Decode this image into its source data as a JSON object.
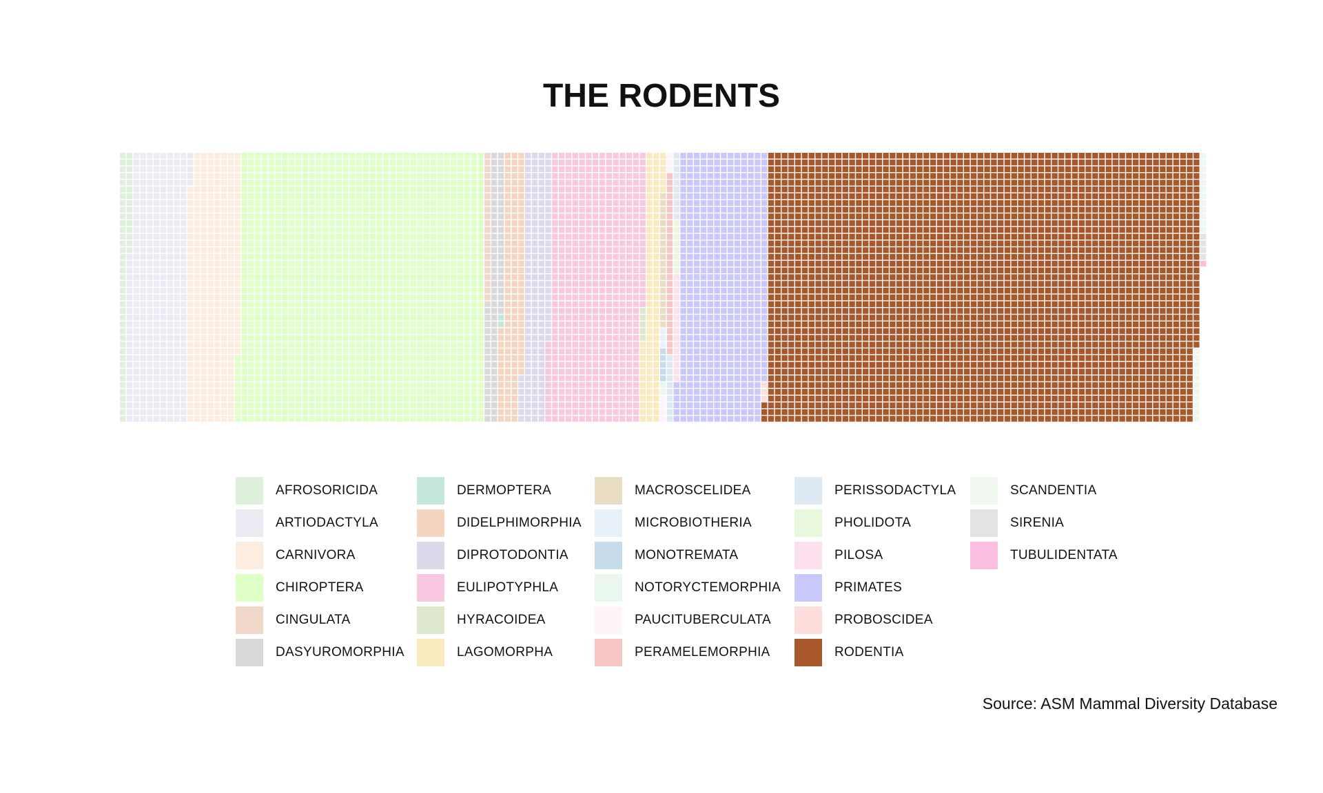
{
  "chart_data": {
    "type": "waffle",
    "title": "THE RODENTS",
    "caption": "Source: ASM Mammal Diversity Database",
    "legend_position": "bottom",
    "grid_rows": 40,
    "categories": [
      {
        "name": "AFROSORICIDA",
        "color": "#DFF0DD",
        "value": 55
      },
      {
        "name": "ARTIODACTYLA",
        "color": "#ECEAF3",
        "value": 350
      },
      {
        "name": "CARNIVORA",
        "color": "#FDEDE0",
        "value": 305
      },
      {
        "name": "CHIROPTERA",
        "color": "#DEFFC6",
        "value": 1450
      },
      {
        "name": "CINGULATA",
        "color": "#F0D7C8",
        "value": 22
      },
      {
        "name": "DASYUROMORPHIA",
        "color": "#D9D9D9",
        "value": 82
      },
      {
        "name": "DERMOPTERA",
        "color": "#C6E8DC",
        "value": 2
      },
      {
        "name": "DIDELPHIMORPHIA",
        "color": "#F5D5C0",
        "value": 127
      },
      {
        "name": "DIPROTODONTIA",
        "color": "#DDD9EA",
        "value": 155
      },
      {
        "name": "EULIPOTYPHLA",
        "color": "#F8C7E0",
        "value": 555
      },
      {
        "name": "HYRACOIDEA",
        "color": "#DEE8CC",
        "value": 5
      },
      {
        "name": "LAGOMORPHA",
        "color": "#F9EAC0",
        "value": 98
      },
      {
        "name": "MACROSCELIDEA",
        "color": "#E8DCC3",
        "value": 20
      },
      {
        "name": "MICROBIOTHERIA",
        "color": "#E8F1F8",
        "value": 3
      },
      {
        "name": "MONOTREMATA",
        "color": "#C6DCEA",
        "value": 5
      },
      {
        "name": "NOTORYCTEMORPHIA",
        "color": "#EAF7EE",
        "value": 2
      },
      {
        "name": "PAUCITUBERCULATA",
        "color": "#FDF5FA",
        "value": 7
      },
      {
        "name": "PERAMELEMORPHIA",
        "color": "#F6C5C5",
        "value": 27
      },
      {
        "name": "PERISSODACTYLA",
        "color": "#DEE9F3",
        "value": 20
      },
      {
        "name": "PHOLIDOTA",
        "color": "#E9F8DC",
        "value": 8
      },
      {
        "name": "PILOSA",
        "color": "#FDE0EE",
        "value": 16
      },
      {
        "name": "PRIMATES",
        "color": "#C8C8FA",
        "value": 520
      },
      {
        "name": "PROBOSCIDEA",
        "color": "#FEDEDC",
        "value": 3
      },
      {
        "name": "RODENTIA",
        "color": "#A8582A",
        "value": 2552
      },
      {
        "name": "SCANDENTIA",
        "color": "#EFF7EF",
        "value": 23
      },
      {
        "name": "SIRENIA",
        "color": "#E3E3E3",
        "value": 4
      },
      {
        "name": "TUBULIDENTATA",
        "color": "#F9BEE0",
        "value": 1
      }
    ]
  }
}
